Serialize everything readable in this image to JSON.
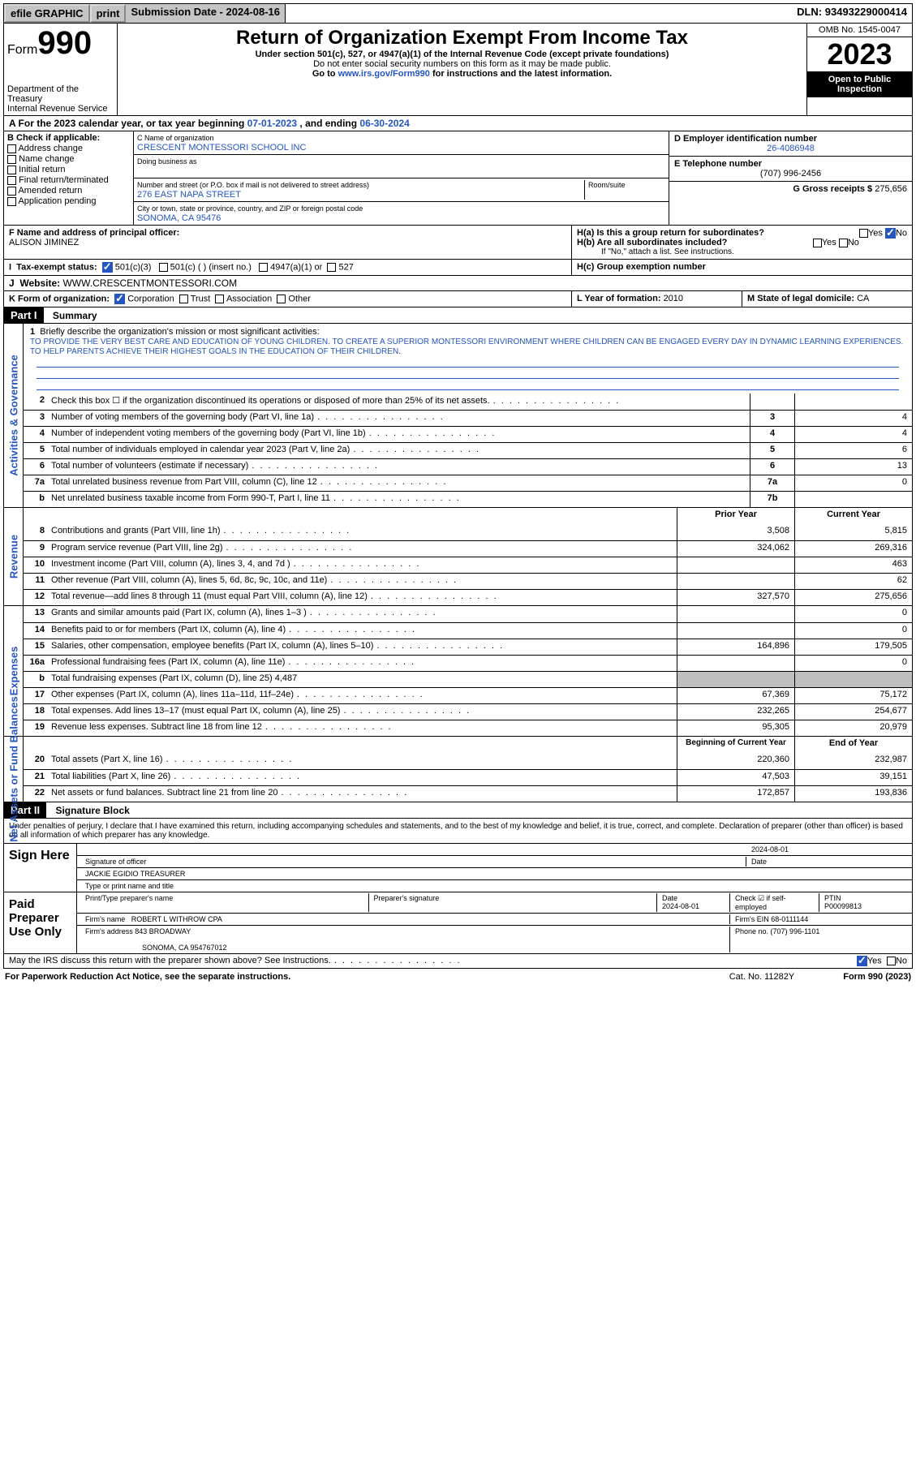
{
  "topbar": {
    "efile": "efile GRAPHIC",
    "print": "print",
    "subdate_lbl": "Submission Date - ",
    "subdate": "2024-08-16",
    "dln_lbl": "DLN: ",
    "dln": "93493229000414"
  },
  "header": {
    "form_lbl": "Form",
    "form_no": "990",
    "dept": "Department of the Treasury",
    "irs": "Internal Revenue Service",
    "title": "Return of Organization Exempt From Income Tax",
    "sub1": "Under section 501(c), 527, or 4947(a)(1) of the Internal Revenue Code (except private foundations)",
    "sub2": "Do not enter social security numbers on this form as it may be made public.",
    "sub3_pre": "Go to ",
    "sub3_link": "www.irs.gov/Form990",
    "sub3_post": " for instructions and the latest information.",
    "omb": "OMB No. 1545-0047",
    "year": "2023",
    "open": "Open to Public Inspection"
  },
  "period": {
    "a_pre": "A For the 2023 calendar year, or tax year beginning ",
    "begin": "07-01-2023",
    "mid": " , and ending ",
    "end": "06-30-2024"
  },
  "blockB": {
    "hdr": "B Check if applicable:",
    "c1": "Address change",
    "c2": "Name change",
    "c3": "Initial return",
    "c4": "Final return/terminated",
    "c5": "Amended return",
    "c6": "Application pending"
  },
  "blockC": {
    "name_lbl": "C Name of organization",
    "name": "CRESCENT MONTESSORI SCHOOL INC",
    "dba_lbl": "Doing business as",
    "addr_lbl": "Number and street (or P.O. box if mail is not delivered to street address)",
    "room_lbl": "Room/suite",
    "addr": "276 EAST NAPA STREET",
    "city_lbl": "City or town, state or province, country, and ZIP or foreign postal code",
    "city": "SONOMA, CA  95476"
  },
  "blockD": {
    "ein_lbl": "D Employer identification number",
    "ein": "26-4086948",
    "tel_lbl": "E Telephone number",
    "tel": "(707) 996-2456",
    "gross_lbl": "G Gross receipts $ ",
    "gross": "275,656"
  },
  "blockF": {
    "lbl": "F Name and address of principal officer:",
    "name": "ALISON JIMINEZ"
  },
  "blockH": {
    "ha": "H(a)  Is this a group return for subordinates?",
    "hb": "H(b)  Are all subordinates included?",
    "hb_note": "If \"No,\" attach a list. See instructions.",
    "hc": "H(c)  Group exemption number ",
    "yes": "Yes",
    "no": "No"
  },
  "blockI": {
    "lbl": "Tax-exempt status:",
    "c1": "501(c)(3)",
    "c2": "501(c) (  ) (insert no.)",
    "c3": "4947(a)(1) or",
    "c4": "527"
  },
  "blockJ": {
    "lbl": "Website: ",
    "val": "WWW.CRESCENTMONTESSORI.COM"
  },
  "blockK": {
    "lbl": "K Form of organization:",
    "o1": "Corporation",
    "o2": "Trust",
    "o3": "Association",
    "o4": "Other"
  },
  "blockL": {
    "lbl": "L Year of formation: ",
    "val": "2010"
  },
  "blockM": {
    "lbl": "M State of legal domicile: ",
    "val": "CA"
  },
  "part1": {
    "bar": "Part I",
    "title": "Summary"
  },
  "sidelabels": {
    "ag": "Activities & Governance",
    "rev": "Revenue",
    "exp": "Expenses",
    "na": "Net Assets or Fund Balances"
  },
  "mission": {
    "q": "Briefly describe the organization's mission or most significant activities:",
    "text": "TO PROVIDE THE VERY BEST CARE AND EDUCATION OF YOUNG CHILDREN. TO CREATE A SUPERIOR MONTESSORI ENVIRONMENT WHERE CHILDREN CAN BE ENGAGED EVERY DAY IN DYNAMIC LEARNING EXPERIENCES. TO HELP PARENTS ACHIEVE THEIR HIGHEST GOALS IN THE EDUCATION OF THEIR CHILDREN."
  },
  "lines_ag": [
    {
      "n": "2",
      "d": "Check this box ☐ if the organization discontinued its operations or disposed of more than 25% of its net assets.",
      "c": "",
      "v": ""
    },
    {
      "n": "3",
      "d": "Number of voting members of the governing body (Part VI, line 1a)",
      "c": "3",
      "v": "4"
    },
    {
      "n": "4",
      "d": "Number of independent voting members of the governing body (Part VI, line 1b)",
      "c": "4",
      "v": "4"
    },
    {
      "n": "5",
      "d": "Total number of individuals employed in calendar year 2023 (Part V, line 2a)",
      "c": "5",
      "v": "6"
    },
    {
      "n": "6",
      "d": "Total number of volunteers (estimate if necessary)",
      "c": "6",
      "v": "13"
    },
    {
      "n": "7a",
      "d": "Total unrelated business revenue from Part VIII, column (C), line 12",
      "c": "7a",
      "v": "0"
    },
    {
      "n": "b",
      "d": "Net unrelated business taxable income from Form 990-T, Part I, line 11",
      "c": "7b",
      "v": ""
    }
  ],
  "col_hdrs": {
    "py": "Prior Year",
    "cy": "Current Year",
    "boy": "Beginning of Current Year",
    "eoy": "End of Year"
  },
  "lines_rev": [
    {
      "n": "8",
      "d": "Contributions and grants (Part VIII, line 1h)",
      "p": "3,508",
      "c": "5,815"
    },
    {
      "n": "9",
      "d": "Program service revenue (Part VIII, line 2g)",
      "p": "324,062",
      "c": "269,316"
    },
    {
      "n": "10",
      "d": "Investment income (Part VIII, column (A), lines 3, 4, and 7d )",
      "p": "",
      "c": "463"
    },
    {
      "n": "11",
      "d": "Other revenue (Part VIII, column (A), lines 5, 6d, 8c, 9c, 10c, and 11e)",
      "p": "",
      "c": "62"
    },
    {
      "n": "12",
      "d": "Total revenue—add lines 8 through 11 (must equal Part VIII, column (A), line 12)",
      "p": "327,570",
      "c": "275,656"
    }
  ],
  "lines_exp": [
    {
      "n": "13",
      "d": "Grants and similar amounts paid (Part IX, column (A), lines 1–3 )",
      "p": "",
      "c": "0"
    },
    {
      "n": "14",
      "d": "Benefits paid to or for members (Part IX, column (A), line 4)",
      "p": "",
      "c": "0"
    },
    {
      "n": "15",
      "d": "Salaries, other compensation, employee benefits (Part IX, column (A), lines 5–10)",
      "p": "164,896",
      "c": "179,505"
    },
    {
      "n": "16a",
      "d": "Professional fundraising fees (Part IX, column (A), line 11e)",
      "p": "",
      "c": "0"
    },
    {
      "n": "b",
      "d": "Total fundraising expenses (Part IX, column (D), line 25) 4,487",
      "p": "",
      "c": "",
      "grey": true
    },
    {
      "n": "17",
      "d": "Other expenses (Part IX, column (A), lines 11a–11d, 11f–24e)",
      "p": "67,369",
      "c": "75,172"
    },
    {
      "n": "18",
      "d": "Total expenses. Add lines 13–17 (must equal Part IX, column (A), line 25)",
      "p": "232,265",
      "c": "254,677"
    },
    {
      "n": "19",
      "d": "Revenue less expenses. Subtract line 18 from line 12",
      "p": "95,305",
      "c": "20,979"
    }
  ],
  "lines_na": [
    {
      "n": "20",
      "d": "Total assets (Part X, line 16)",
      "p": "220,360",
      "c": "232,987"
    },
    {
      "n": "21",
      "d": "Total liabilities (Part X, line 26)",
      "p": "47,503",
      "c": "39,151"
    },
    {
      "n": "22",
      "d": "Net assets or fund balances. Subtract line 21 from line 20",
      "p": "172,857",
      "c": "193,836"
    }
  ],
  "part2": {
    "bar": "Part II",
    "title": "Signature Block"
  },
  "sig": {
    "decl": "Under penalties of perjury, I declare that I have examined this return, including accompanying schedules and statements, and to the best of my knowledge and belief, it is true, correct, and complete. Declaration of preparer (other than officer) is based on all information of which preparer has any knowledge.",
    "sign_here": "Sign Here",
    "sig_officer_lbl": "Signature of officer",
    "officer": "JACKIE EGIDIO  TREASURER",
    "type_lbl": "Type or print name and title",
    "date_lbl": "Date",
    "date1": "2024-08-01",
    "paid": "Paid Preparer Use Only",
    "prep_name_lbl": "Print/Type preparer's name",
    "prep_sig_lbl": "Preparer's signature",
    "date2": "2024-08-01",
    "check_lbl": "Check ☑ if self-employed",
    "ptin_lbl": "PTIN",
    "ptin": "P00099813",
    "firm_name_lbl": "Firm's name ",
    "firm_name": "ROBERT L WITHROW CPA",
    "firm_ein_lbl": "Firm's EIN ",
    "firm_ein": "68-0111144",
    "firm_addr_lbl": "Firm's address ",
    "firm_addr1": "843 BROADWAY",
    "firm_addr2": "SONOMA, CA  954767012",
    "phone_lbl": "Phone no. ",
    "phone": "(707) 996-1101"
  },
  "discuss": {
    "q": "May the IRS discuss this return with the preparer shown above? See Instructions.",
    "yes": "Yes",
    "no": "No"
  },
  "footer": {
    "pra": "For Paperwork Reduction Act Notice, see the separate instructions.",
    "cat": "Cat. No. 11282Y",
    "form": "Form 990 (2023)"
  },
  "colors": {
    "link": "#2455c3",
    "grey": "#bfbfbf"
  }
}
